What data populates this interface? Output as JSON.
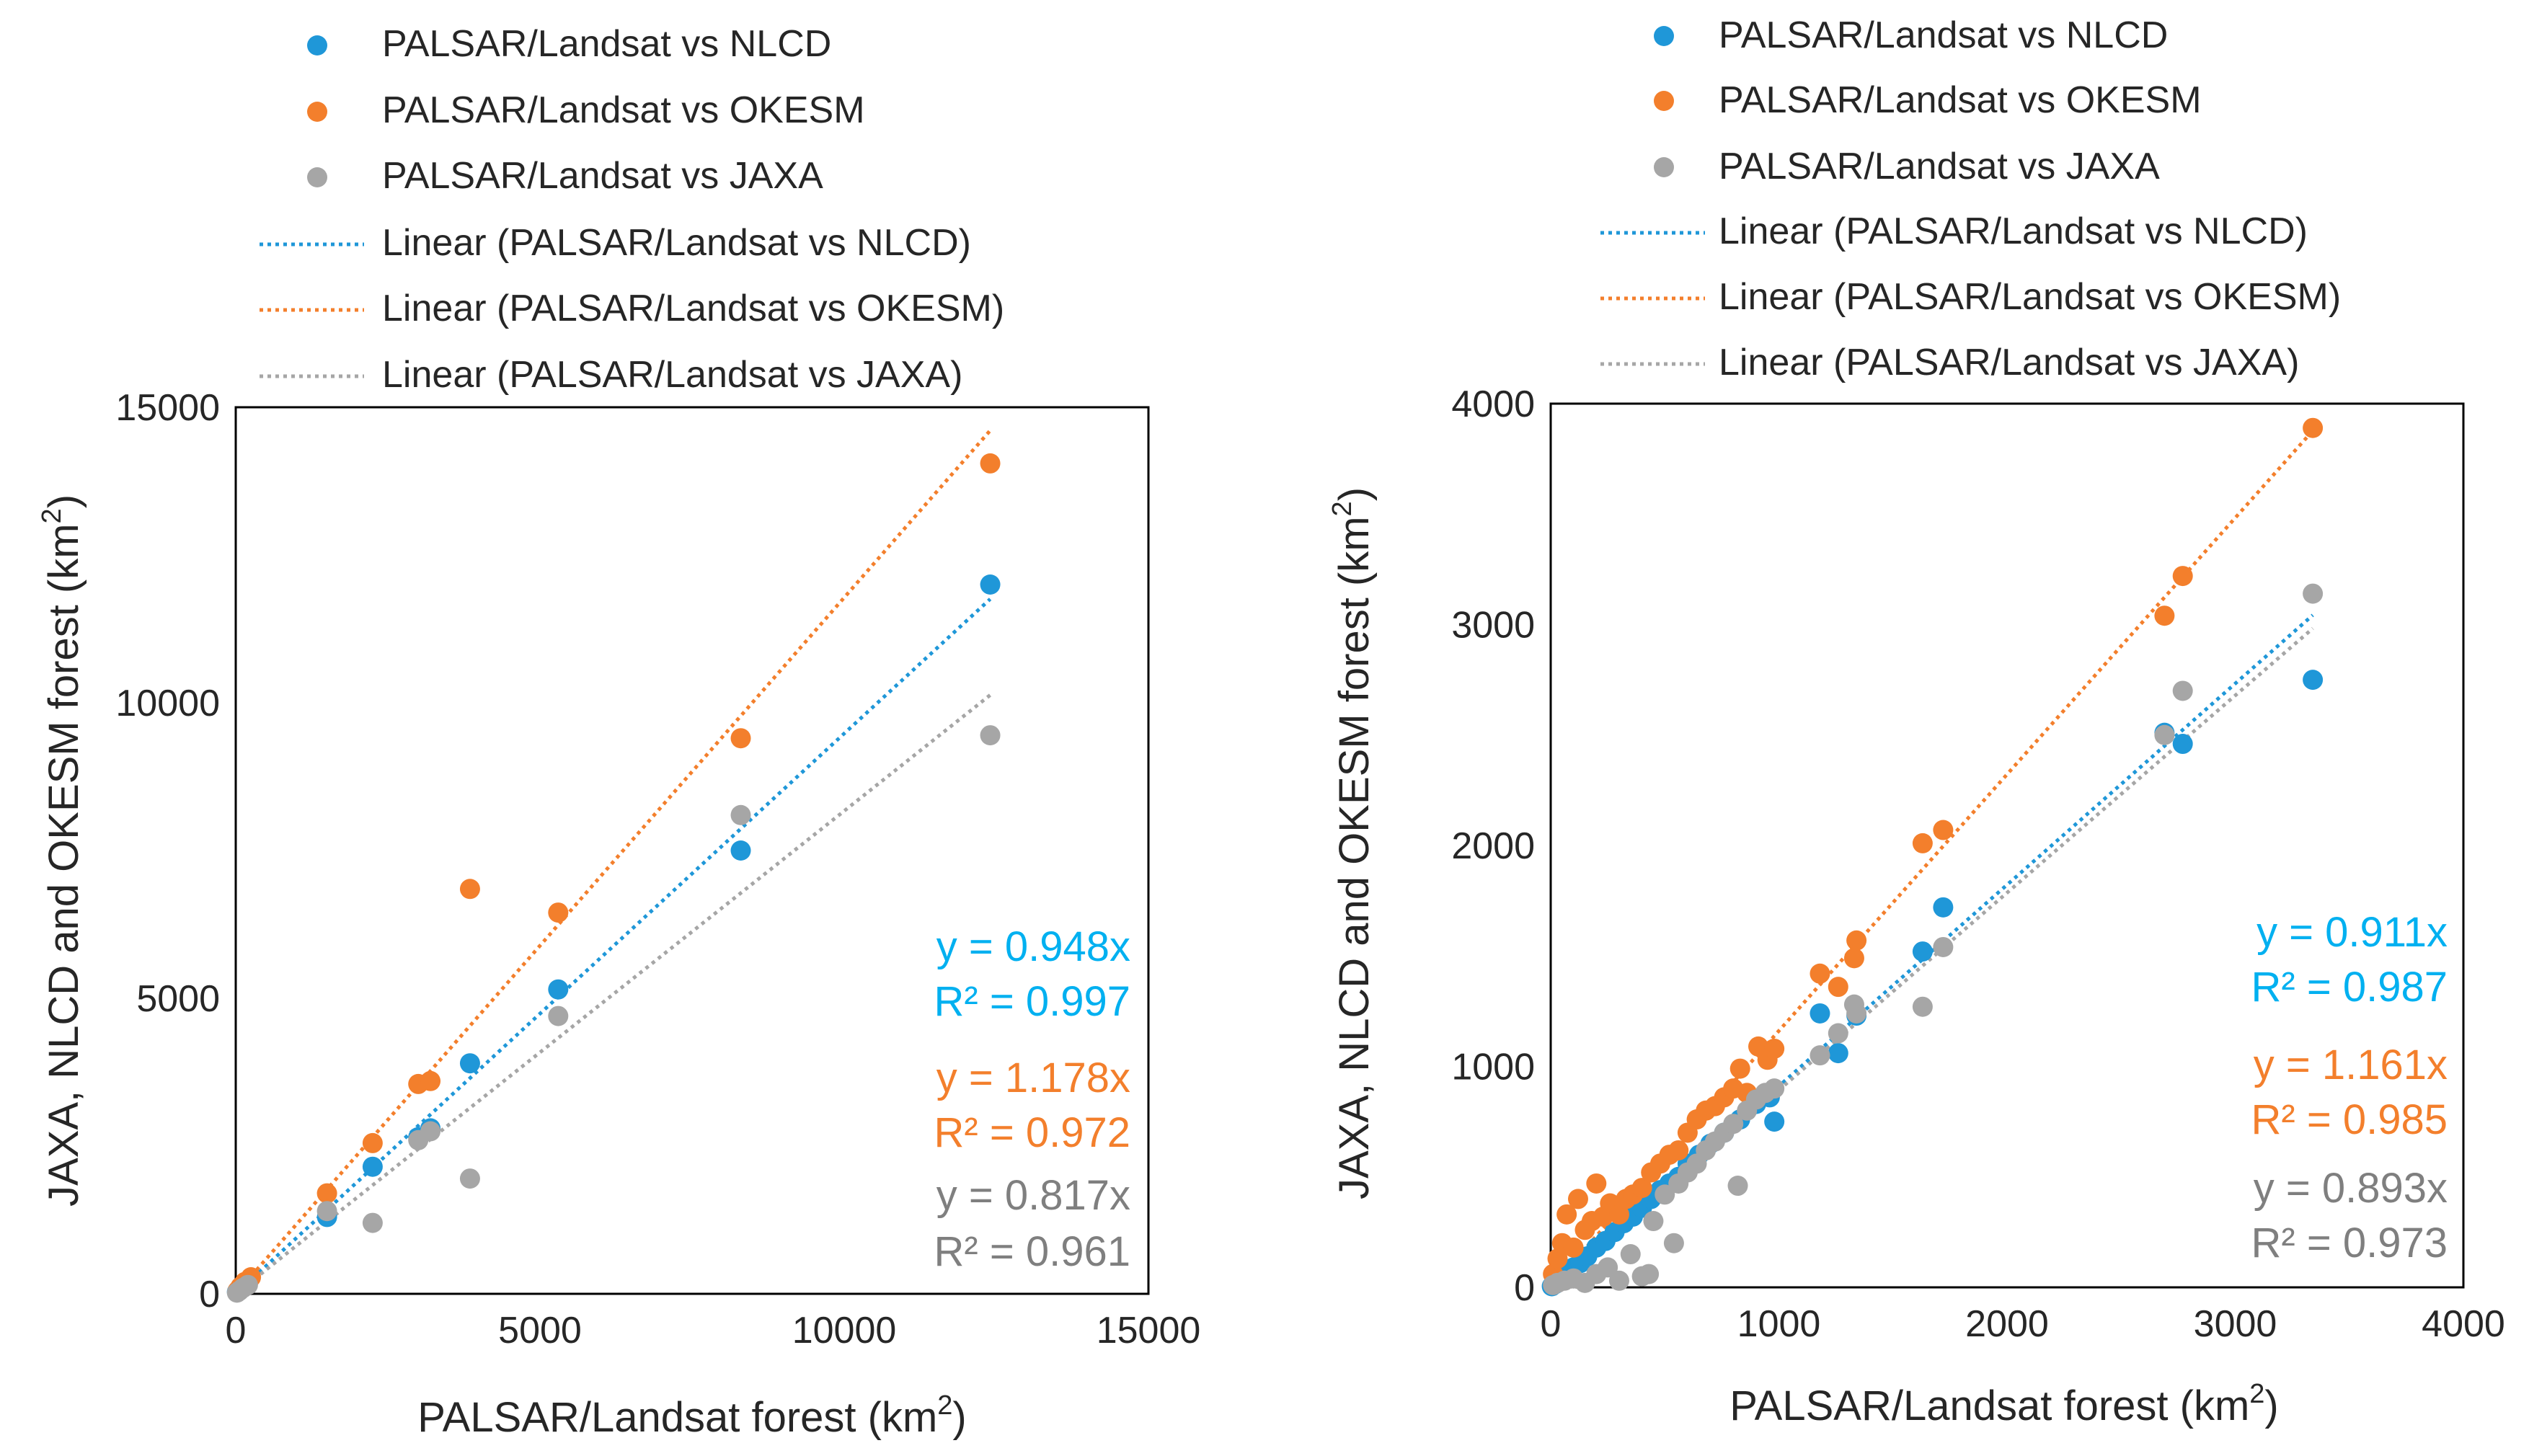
{
  "colors": {
    "nlcd": "#1f97d8",
    "okesm": "#f37f2c",
    "jaxa": "#a6a6a6",
    "nlcd_text": "#00b0f0",
    "okesm_text": "#f37f2c",
    "jaxa_text": "#7f7f7f"
  },
  "chart_data": [
    {
      "type": "scatter",
      "title": "",
      "xlabel": "PALSAR/Landsat forest (km",
      "xlabel_sup": "2",
      "xlabel_end": ")",
      "ylabel": "JAXA, NLCD and OKESM forest (km",
      "ylabel_sup": "2",
      "ylabel_end": ")",
      "xlim": [
        0,
        15000
      ],
      "ylim": [
        0,
        15000
      ],
      "xticks": [
        0,
        5000,
        10000,
        15000
      ],
      "yticks": [
        0,
        5000,
        10000,
        15000
      ],
      "legend_placement": "top",
      "series": [
        {
          "key": "nlcd",
          "name": "PALSAR/Landsat vs NLCD",
          "trend_label": "Linear (PALSAR/Landsat vs NLCD)",
          "slope": 0.948,
          "equation": "y = 0.948x",
          "r2": "R² = 0.997",
          "points": [
            [
              20,
              30
            ],
            [
              60,
              70
            ],
            [
              120,
              150
            ],
            [
              200,
              180
            ],
            [
              1500,
              1300
            ],
            [
              2250,
              2150
            ],
            [
              3000,
              2650
            ],
            [
              3200,
              2800
            ],
            [
              3850,
              3900
            ],
            [
              5300,
              5150
            ],
            [
              8300,
              7500
            ],
            [
              12400,
              12000
            ]
          ]
        },
        {
          "key": "okesm",
          "name": "PALSAR/Landsat vs OKESM",
          "trend_label": "Linear (PALSAR/Landsat vs OKESM)",
          "slope": 1.178,
          "equation": "y = 1.178x",
          "r2": "R² = 0.972",
          "points": [
            [
              30,
              50
            ],
            [
              80,
              120
            ],
            [
              150,
              200
            ],
            [
              250,
              280
            ],
            [
              1500,
              1700
            ],
            [
              2250,
              2550
            ],
            [
              3000,
              3550
            ],
            [
              3200,
              3600
            ],
            [
              3850,
              6850
            ],
            [
              5300,
              6450
            ],
            [
              8300,
              9400
            ],
            [
              12400,
              14050
            ]
          ]
        },
        {
          "key": "jaxa",
          "name": "PALSAR/Landsat vs JAXA",
          "trend_label": "Linear (PALSAR/Landsat vs JAXA)",
          "slope": 0.817,
          "equation": "y = 0.817x",
          "r2": "R² = 0.961",
          "points": [
            [
              20,
              20
            ],
            [
              60,
              50
            ],
            [
              120,
              100
            ],
            [
              200,
              150
            ],
            [
              1500,
              1400
            ],
            [
              2250,
              1200
            ],
            [
              3000,
              2600
            ],
            [
              3200,
              2750
            ],
            [
              3850,
              1950
            ],
            [
              5300,
              4700
            ],
            [
              8300,
              8100
            ],
            [
              12400,
              9450
            ]
          ]
        }
      ]
    },
    {
      "type": "scatter",
      "title": "",
      "xlabel": "PALSAR/Landsat forest (km",
      "xlabel_sup": "2",
      "xlabel_end": ")",
      "ylabel": "JAXA, NLCD and OKESM forest (km",
      "ylabel_sup": "2",
      "ylabel_end": ")",
      "xlim": [
        0,
        4000
      ],
      "ylim": [
        0,
        4000
      ],
      "xticks": [
        0,
        1000,
        2000,
        3000,
        4000
      ],
      "yticks": [
        0,
        1000,
        2000,
        3000,
        4000
      ],
      "legend_placement": "top",
      "series": [
        {
          "key": "nlcd",
          "name": "PALSAR/Landsat vs NLCD",
          "trend_label": "Linear (PALSAR/Landsat vs NLCD)",
          "slope": 0.911,
          "equation": "y = 0.911x",
          "r2": "R² = 0.987",
          "points": [
            [
              5,
              5
            ],
            [
              20,
              15
            ],
            [
              40,
              35
            ],
            [
              60,
              50
            ],
            [
              80,
              70
            ],
            [
              100,
              90
            ],
            [
              130,
              110
            ],
            [
              160,
              140
            ],
            [
              200,
              180
            ],
            [
              240,
              210
            ],
            [
              280,
              250
            ],
            [
              320,
              290
            ],
            [
              360,
              320
            ],
            [
              400,
              360
            ],
            [
              440,
              400
            ],
            [
              480,
              440
            ],
            [
              520,
              470
            ],
            [
              560,
              500
            ],
            [
              600,
              560
            ],
            [
              650,
              600
            ],
            [
              700,
              650
            ],
            [
              760,
              700
            ],
            [
              830,
              760
            ],
            [
              900,
              830
            ],
            [
              960,
              860
            ],
            [
              980,
              750
            ],
            [
              1180,
              1240
            ],
            [
              1260,
              1060
            ],
            [
              1340,
              1230
            ],
            [
              1630,
              1520
            ],
            [
              1720,
              1720
            ],
            [
              2690,
              2510
            ],
            [
              2770,
              2460
            ],
            [
              3340,
              2750
            ]
          ]
        },
        {
          "key": "okesm",
          "name": "PALSAR/Landsat vs OKESM",
          "trend_label": "Linear (PALSAR/Landsat vs OKESM)",
          "slope": 1.161,
          "equation": "y = 1.161x",
          "r2": "R² = 0.985",
          "points": [
            [
              10,
              60
            ],
            [
              30,
              130
            ],
            [
              50,
              200
            ],
            [
              70,
              330
            ],
            [
              100,
              180
            ],
            [
              120,
              400
            ],
            [
              150,
              260
            ],
            [
              180,
              300
            ],
            [
              200,
              470
            ],
            [
              230,
              320
            ],
            [
              260,
              380
            ],
            [
              300,
              330
            ],
            [
              330,
              400
            ],
            [
              360,
              420
            ],
            [
              400,
              450
            ],
            [
              440,
              520
            ],
            [
              480,
              560
            ],
            [
              520,
              600
            ],
            [
              560,
              620
            ],
            [
              600,
              700
            ],
            [
              640,
              760
            ],
            [
              680,
              800
            ],
            [
              720,
              820
            ],
            [
              760,
              860
            ],
            [
              800,
              900
            ],
            [
              830,
              990
            ],
            [
              860,
              880
            ],
            [
              910,
              1090
            ],
            [
              950,
              1030
            ],
            [
              980,
              1080
            ],
            [
              1180,
              1420
            ],
            [
              1260,
              1360
            ],
            [
              1330,
              1490
            ],
            [
              1340,
              1570
            ],
            [
              1630,
              2010
            ],
            [
              1720,
              2070
            ],
            [
              2690,
              3040
            ],
            [
              2770,
              3220
            ],
            [
              3340,
              3890
            ]
          ]
        },
        {
          "key": "jaxa",
          "name": "PALSAR/Landsat vs JAXA",
          "trend_label": "Linear (PALSAR/Landsat vs JAXA)",
          "slope": 0.893,
          "equation": "y = 0.893x",
          "r2": "R² = 0.973",
          "points": [
            [
              10,
              10
            ],
            [
              30,
              20
            ],
            [
              60,
              30
            ],
            [
              100,
              40
            ],
            [
              150,
              20
            ],
            [
              200,
              60
            ],
            [
              250,
              90
            ],
            [
              300,
              30
            ],
            [
              350,
              150
            ],
            [
              400,
              50
            ],
            [
              430,
              60
            ],
            [
              450,
              300
            ],
            [
              500,
              420
            ],
            [
              540,
              200
            ],
            [
              560,
              470
            ],
            [
              600,
              520
            ],
            [
              640,
              560
            ],
            [
              680,
              620
            ],
            [
              720,
              660
            ],
            [
              760,
              700
            ],
            [
              800,
              740
            ],
            [
              820,
              460
            ],
            [
              860,
              800
            ],
            [
              900,
              850
            ],
            [
              940,
              880
            ],
            [
              980,
              900
            ],
            [
              1180,
              1050
            ],
            [
              1260,
              1150
            ],
            [
              1330,
              1280
            ],
            [
              1340,
              1240
            ],
            [
              1630,
              1270
            ],
            [
              1720,
              1540
            ],
            [
              2690,
              2500
            ],
            [
              2770,
              2700
            ],
            [
              3340,
              3140
            ]
          ]
        }
      ]
    }
  ]
}
